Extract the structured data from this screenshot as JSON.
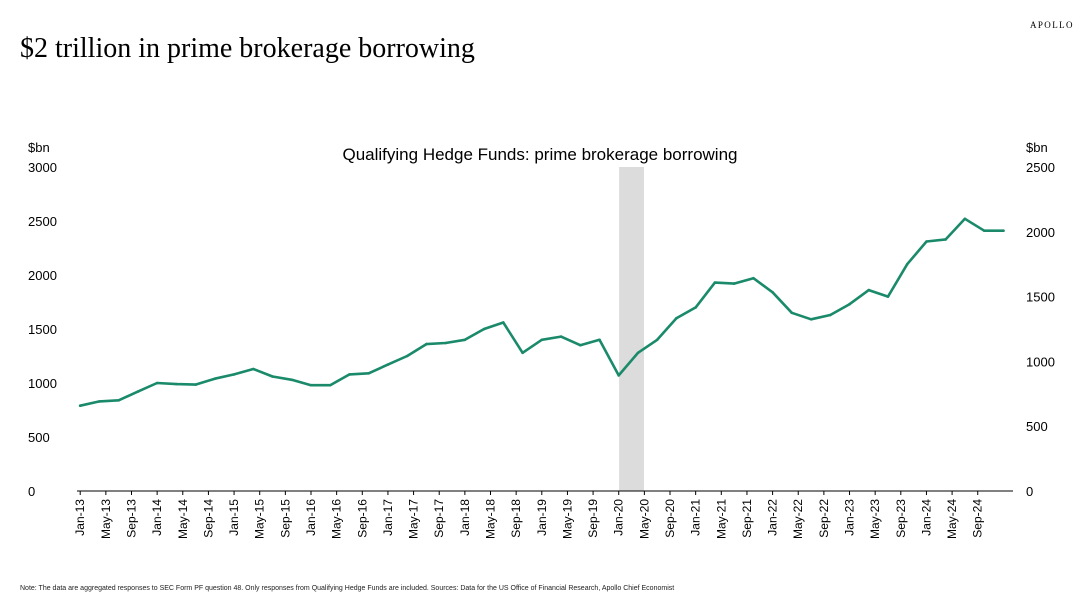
{
  "brand": "APOLLO",
  "title": "$2 trillion in prime brokerage borrowing",
  "note": "Note: The data are aggregated responses to SEC Form PF question 48. Only responses from Qualifying Hedge Funds are included. Sources: Data for the US Office of Financial Research, Apollo Chief Economist",
  "colors": {
    "line": "#1a8a6a",
    "recession": "#dcdcdc",
    "axis": "#000000"
  },
  "chart_data": {
    "type": "line",
    "title": "Qualifying Hedge Funds: prime brokerage borrowing",
    "left_axis": {
      "unit": "$bn",
      "ylim": [
        0,
        3000
      ],
      "ticks": [
        "0",
        "500",
        "1000",
        "1500",
        "2000",
        "2500",
        "3000"
      ]
    },
    "right_axis": {
      "unit": "$bn",
      "ylim": [
        0,
        2500
      ],
      "ticks": [
        "0",
        "500",
        "1000",
        "1500",
        "2000",
        "2500"
      ]
    },
    "x_tick_labels": [
      "Jan-13",
      "May-13",
      "Sep-13",
      "Jan-14",
      "May-14",
      "Sep-14",
      "Jan-15",
      "May-15",
      "Sep-15",
      "Jan-16",
      "May-16",
      "Sep-16",
      "Jan-17",
      "May-17",
      "Sep-17",
      "Jan-18",
      "May-18",
      "Sep-18",
      "Jan-19",
      "May-19",
      "Sep-19",
      "Jan-20",
      "May-20",
      "Sep-20",
      "Jan-21",
      "May-21",
      "Sep-21",
      "Jan-22",
      "May-22",
      "Sep-22",
      "Jan-23",
      "May-23",
      "Sep-23",
      "Jan-24",
      "May-24",
      "Sep-24"
    ],
    "recession_shading": {
      "from": "Feb-20",
      "to": "Apr-20"
    },
    "grid": false,
    "legend": "none",
    "series": [
      {
        "axis": "left",
        "x": [
          "Jan-13",
          "Apr-13",
          "Jul-13",
          "Oct-13",
          "Jan-14",
          "Apr-14",
          "Jul-14",
          "Oct-14",
          "Jan-15",
          "Apr-15",
          "Jul-15",
          "Oct-15",
          "Jan-16",
          "Apr-16",
          "Jul-16",
          "Oct-16",
          "Jan-17",
          "Apr-17",
          "Jul-17",
          "Oct-17",
          "Jan-18",
          "Apr-18",
          "Jul-18",
          "Oct-18",
          "Jan-19",
          "Apr-19",
          "Jul-19",
          "Oct-19",
          "Jan-20",
          "Apr-20",
          "Jul-20",
          "Oct-20",
          "Jan-21",
          "Apr-21",
          "Jul-21",
          "Oct-21",
          "Jan-22",
          "Apr-22",
          "Jul-22",
          "Oct-22",
          "Jan-23",
          "Apr-23",
          "Jul-23",
          "Oct-23",
          "Jan-24",
          "Apr-24",
          "Jul-24",
          "Oct-24",
          "Jan-25"
        ],
        "values": [
          790,
          830,
          840,
          920,
          1000,
          990,
          985,
          1040,
          1080,
          1130,
          1060,
          1030,
          980,
          980,
          1080,
          1090,
          1170,
          1250,
          1360,
          1370,
          1400,
          1500,
          1560,
          1280,
          1400,
          1430,
          1350,
          1400,
          1070,
          1280,
          1400,
          1600,
          1700,
          1930,
          1920,
          1970,
          1840,
          1650,
          1590,
          1630,
          1730,
          1860,
          1800,
          2100,
          2310,
          2330,
          2520,
          2410,
          2410
        ]
      }
    ]
  }
}
